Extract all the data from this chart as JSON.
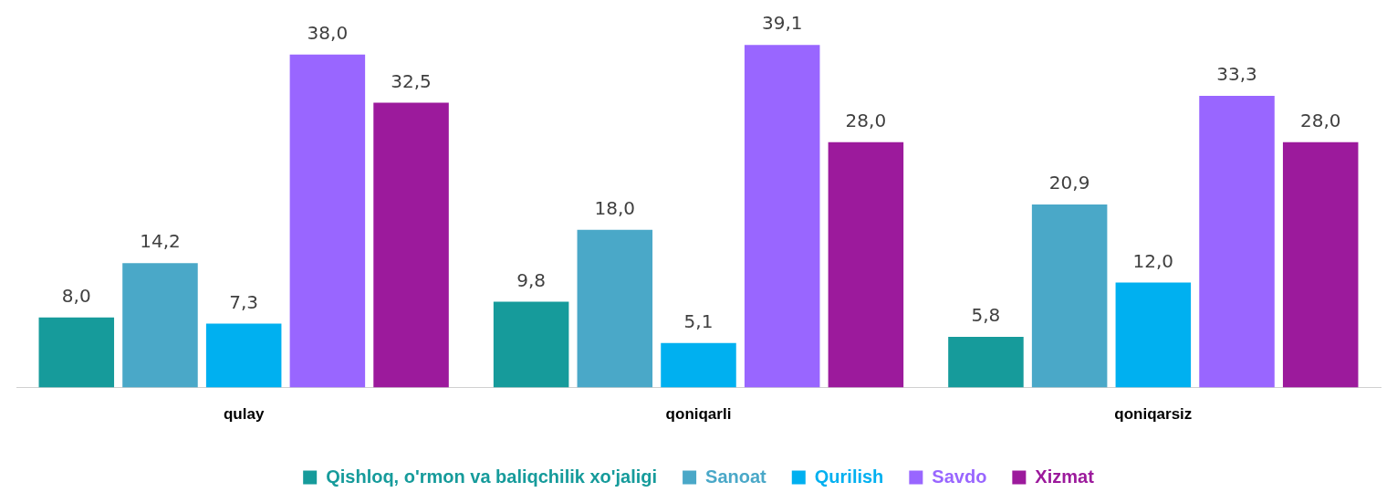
{
  "chart_data": {
    "type": "bar",
    "categories": [
      "qulay",
      "qoniqarli",
      "qoniqarsiz"
    ],
    "series": [
      {
        "name": "Qishloq, o'rmon va baliqchilik xo'jaligi",
        "color": "#169b9b",
        "values": [
          8.0,
          9.8,
          5.8
        ],
        "value_labels": [
          "8,0",
          "9,8",
          "5,8"
        ]
      },
      {
        "name": "Sanoat",
        "color": "#4aa8c8",
        "values": [
          14.2,
          18.0,
          20.9
        ],
        "value_labels": [
          "14,2",
          "18,0",
          "20,9"
        ]
      },
      {
        "name": "Qurilish",
        "color": "#00b0f0",
        "values": [
          7.3,
          5.1,
          12.0
        ],
        "value_labels": [
          "7,3",
          "5,1",
          "12,0"
        ]
      },
      {
        "name": "Savdo",
        "color": "#9966ff",
        "values": [
          38.0,
          39.1,
          33.3
        ],
        "value_labels": [
          "38,0",
          "39,1",
          "33,3"
        ]
      },
      {
        "name": "Xizmat",
        "color": "#9c1a9c",
        "values": [
          32.5,
          28.0,
          28.0
        ],
        "value_labels": [
          "32,5",
          "28,0",
          "28,0"
        ]
      }
    ],
    "legend": "bottom",
    "grid": false
  }
}
